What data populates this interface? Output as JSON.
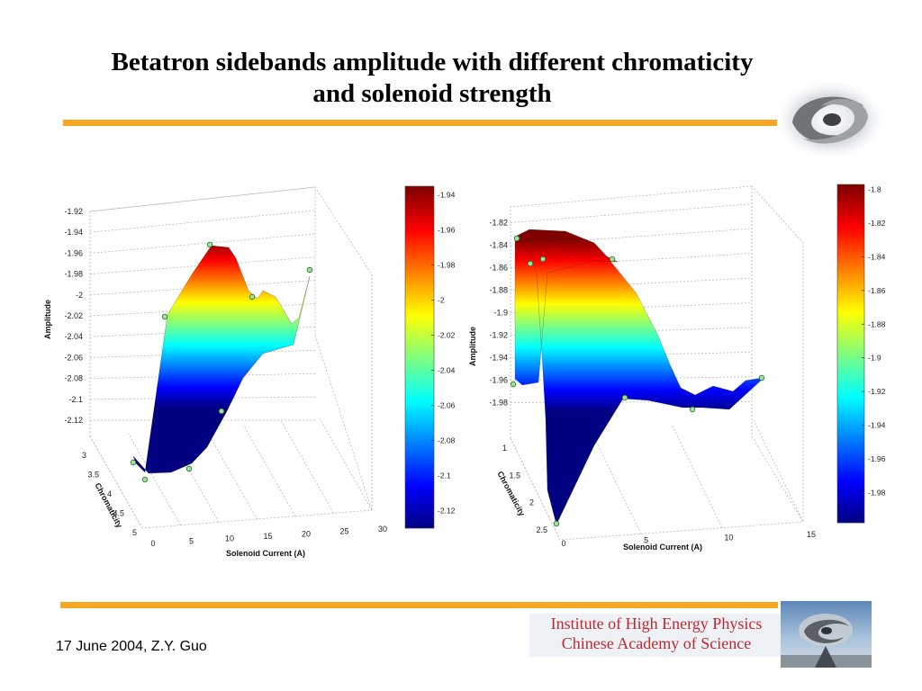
{
  "slide": {
    "title": "Betatron sidebands amplitude with different chromaticity and solenoid strength",
    "title_line1": "Betatron sidebands amplitude with different chromaticity",
    "title_line2": "and solenoid strength",
    "footer_date": "17 June 2004,  Z.Y. Guo",
    "institute_line1": "Institute of High Energy Physics",
    "institute_line2": "Chinese Academy of Science",
    "accent_color": "#f5a623",
    "institute_text_color": "#c0282f"
  },
  "chart_data": [
    {
      "type": "surface",
      "zlabel": "Amplitude",
      "xlabel": "Solenoid Current (A)",
      "ylabel": "Chromaticity",
      "x_ticks": [
        "0",
        "5",
        "10",
        "15",
        "20",
        "25",
        "30"
      ],
      "y_ticks": [
        "3",
        "3.5",
        "4",
        "4.5",
        "5"
      ],
      "z_ticks": [
        "-1.92",
        "-1.94",
        "-1.96",
        "-1.98",
        "-2",
        "-2.02",
        "-2.04",
        "-2.06",
        "-2.08",
        "-2.1",
        "-2.12"
      ],
      "zlim": [
        -2.12,
        -1.92
      ],
      "colorbar_ticks": [
        "-1.94",
        "-1.96",
        "-1.98",
        "-2",
        "-2.02",
        "-2.04",
        "-2.06",
        "-2.08",
        "-2.1",
        "-2.12"
      ],
      "colorbar_range": [
        -2.13,
        -1.935
      ],
      "colormap": "jet",
      "grid": true,
      "marked_points": [
        {
          "x": 0,
          "y": 3.2,
          "z": -2.118
        },
        {
          "x": 0,
          "y": 3.7,
          "z": -2.12
        },
        {
          "x": 5,
          "y": 3.0,
          "z": -2.12
        },
        {
          "x": 10,
          "y": 3.8,
          "z": -2.07
        },
        {
          "x": 10,
          "y": 5.0,
          "z": -2.015
        },
        {
          "x": 15,
          "y": 4.0,
          "z": -1.95
        },
        {
          "x": 20,
          "y": 3.5,
          "z": -2.0
        },
        {
          "x": 30,
          "y": 3.0,
          "z": -2.015
        }
      ]
    },
    {
      "type": "surface",
      "zlabel": "Amplitude",
      "xlabel": "Solenoid Current (A)",
      "ylabel": "Chromaticity",
      "x_ticks": [
        "0",
        "5",
        "10",
        "15"
      ],
      "y_ticks": [
        "1",
        "1.5",
        "2",
        "2.5"
      ],
      "z_ticks": [
        "-1.82",
        "-1.84",
        "-1.86",
        "-1.88",
        "-1.9",
        "-1.92",
        "-1.94",
        "-1.96",
        "-1.98"
      ],
      "zlim": [
        -1.99,
        -1.81
      ],
      "colorbar_ticks": [
        "-1.8",
        "-1.82",
        "-1.84",
        "-1.86",
        "-1.88",
        "-1.9",
        "-1.92",
        "-1.94",
        "-1.96",
        "-1.98"
      ],
      "colorbar_range": [
        -1.998,
        -1.797
      ],
      "colormap": "jet",
      "grid": true,
      "marked_points": [
        {
          "x": 0,
          "y": 1.0,
          "z": -1.84
        },
        {
          "x": 0,
          "y": 1.3,
          "z": -1.855
        },
        {
          "x": 0,
          "y": 1.6,
          "z": -1.86
        },
        {
          "x": 0,
          "y": 2.5,
          "z": -1.96
        },
        {
          "x": 0,
          "y": 2.5,
          "z": -1.99
        },
        {
          "x": 5,
          "y": 1.5,
          "z": -1.86
        },
        {
          "x": 5,
          "y": 2.5,
          "z": -1.97
        },
        {
          "x": 10,
          "y": 2.2,
          "z": -1.98
        },
        {
          "x": 15,
          "y": 1.0,
          "z": -1.945
        }
      ]
    }
  ]
}
